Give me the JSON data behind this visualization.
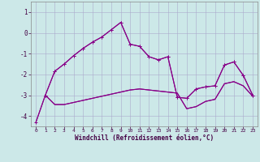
{
  "background_color": "#cce8e8",
  "grid_color": "#aaaacc",
  "line_color": "#880088",
  "xlabel": "Windchill (Refroidissement éolien,°C)",
  "xlim": [
    -0.5,
    23.5
  ],
  "ylim": [
    -4.5,
    1.5
  ],
  "yticks": [
    -4,
    -3,
    -2,
    -1,
    0,
    1
  ],
  "xticks": [
    0,
    1,
    2,
    3,
    4,
    5,
    6,
    7,
    8,
    9,
    10,
    11,
    12,
    13,
    14,
    15,
    16,
    17,
    18,
    19,
    20,
    21,
    22,
    23
  ],
  "curve1_x": [
    0,
    1,
    2,
    3,
    4,
    5,
    6,
    7,
    8,
    9,
    10,
    11,
    12,
    13,
    14,
    15,
    16,
    17,
    18,
    19,
    20,
    21,
    22,
    23
  ],
  "curve1_y": [
    -4.3,
    -3.0,
    -1.85,
    -1.5,
    -1.1,
    -0.75,
    -0.45,
    -0.2,
    0.15,
    0.5,
    -0.55,
    -0.65,
    -1.15,
    -1.3,
    -1.15,
    -3.1,
    -3.15,
    -2.7,
    -2.6,
    -2.55,
    -1.55,
    -1.4,
    -2.05,
    -3.0
  ],
  "curve2_x": [
    0,
    1,
    2,
    3,
    4,
    5,
    6,
    7,
    8,
    9,
    10,
    11,
    12,
    13,
    14,
    15,
    16,
    17,
    18,
    19,
    20,
    21,
    22,
    23
  ],
  "curve2_y": [
    -4.3,
    -3.0,
    -3.45,
    -3.45,
    -3.35,
    -3.25,
    -3.15,
    -3.05,
    -2.95,
    -2.85,
    -2.75,
    -2.7,
    -2.75,
    -2.8,
    -2.85,
    -2.9,
    -3.65,
    -3.55,
    -3.3,
    -3.2,
    -2.45,
    -2.35,
    -2.55,
    -3.05
  ],
  "curve3_x": [
    1,
    2,
    3,
    4,
    5,
    6,
    7,
    8,
    9,
    10,
    11,
    12,
    13,
    14,
    15,
    16,
    17,
    18,
    19,
    20,
    21,
    22,
    23
  ],
  "curve3_y": [
    -3.0,
    -3.45,
    -3.45,
    -3.35,
    -3.25,
    -3.15,
    -3.05,
    -2.95,
    -2.85,
    -2.75,
    -2.7,
    -2.75,
    -2.8,
    -2.85,
    -2.9,
    -3.65,
    -3.55,
    -3.3,
    -3.2,
    -2.45,
    -2.35,
    -2.55,
    -3.05
  ],
  "curve4_x": [
    1,
    2,
    3,
    4,
    5,
    6,
    7,
    8,
    9,
    10,
    11,
    12,
    13,
    14,
    15,
    16,
    17,
    18,
    19,
    20,
    21,
    22,
    23
  ],
  "curve4_y": [
    -3.0,
    -1.85,
    -1.5,
    -1.1,
    -0.75,
    -0.45,
    -0.2,
    0.15,
    0.5,
    -0.55,
    -0.65,
    -1.15,
    -1.3,
    -1.15,
    -3.1,
    -3.15,
    -2.7,
    -2.6,
    -2.55,
    -1.55,
    -1.4,
    -2.05,
    -3.0
  ],
  "marker_size": 3,
  "linewidth": 0.8
}
